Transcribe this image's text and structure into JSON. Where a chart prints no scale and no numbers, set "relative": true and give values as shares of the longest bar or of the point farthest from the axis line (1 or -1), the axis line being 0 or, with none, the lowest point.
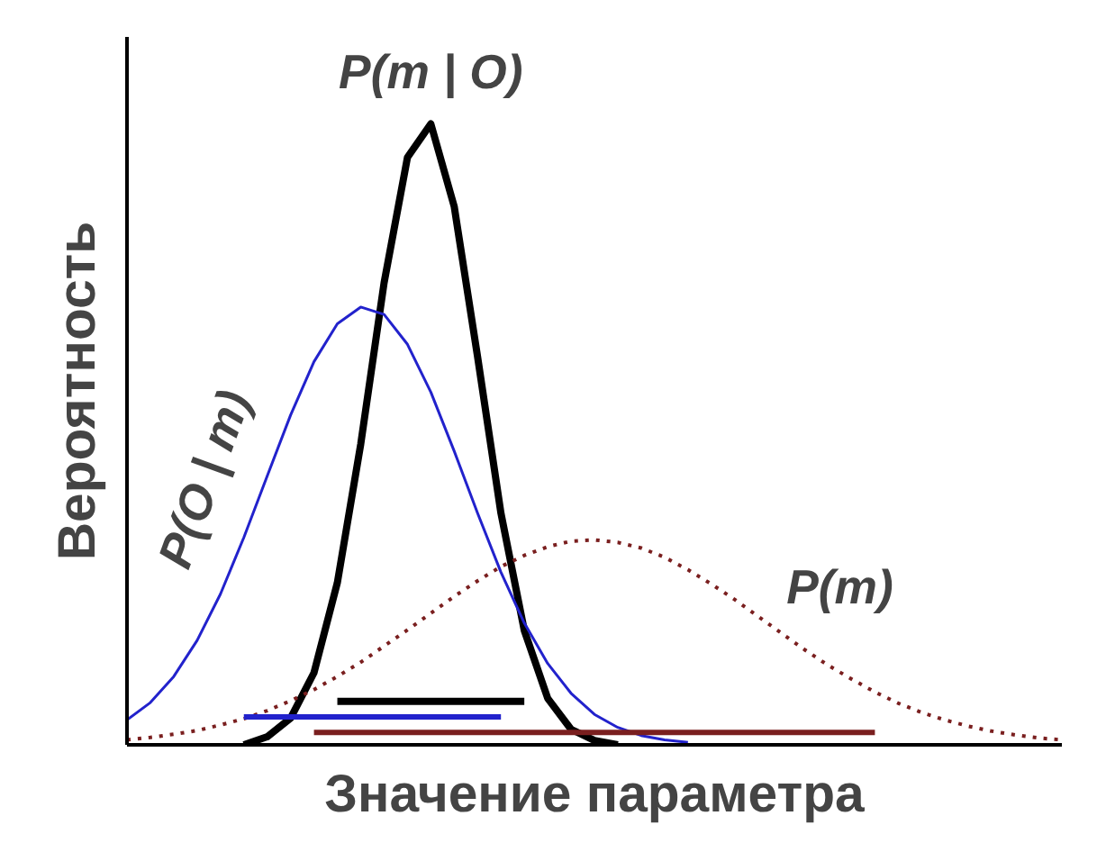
{
  "chart_data": {
    "type": "line",
    "relative": true,
    "xlabel": "Значение параметра",
    "ylabel": "Вероятность",
    "tick_labels": false,
    "grid": false,
    "categories": [
      null,
      null,
      null,
      null,
      null,
      null,
      null,
      null,
      null,
      null,
      null,
      null,
      null,
      null,
      null,
      null,
      null,
      null,
      null,
      null,
      null,
      null,
      null,
      null,
      null,
      null,
      null,
      null,
      null,
      null,
      null,
      null,
      null,
      null,
      null,
      null,
      null,
      null,
      null,
      null,
      null
    ],
    "series": [
      {
        "name": "P(m | O)",
        "color": "#000000",
        "values": [
          null,
          null,
          null,
          null,
          null,
          0,
          0.013,
          0.043,
          0.116,
          0.261,
          0.484,
          0.744,
          0.946,
          1.0,
          0.867,
          0.625,
          0.373,
          0.184,
          0.075,
          0.025,
          0.007,
          0,
          null,
          null,
          null,
          null,
          null,
          null,
          null,
          null,
          null,
          null,
          null,
          null,
          null,
          null,
          null,
          null,
          null,
          null,
          null
        ]
      },
      {
        "name": "P(O | m)",
        "color": "#2222cc",
        "values": [
          0.04,
          0.068,
          0.11,
          0.168,
          0.243,
          0.334,
          0.433,
          0.531,
          0.617,
          0.678,
          0.705,
          0.693,
          0.645,
          0.568,
          0.473,
          0.373,
          0.278,
          0.196,
          0.131,
          0.083,
          0.049,
          0.028,
          0.015,
          0.008,
          0.004,
          null,
          null,
          null,
          null,
          null,
          null,
          null,
          null,
          null,
          null,
          null,
          null,
          null,
          null,
          null,
          null
        ]
      },
      {
        "name": "P(m)",
        "color": "#7a1f1f",
        "line_style": "dotted",
        "values": [
          0.008,
          0.012,
          0.017,
          0.023,
          0.032,
          0.042,
          0.055,
          0.071,
          0.089,
          0.11,
          0.133,
          0.159,
          0.185,
          0.212,
          0.239,
          0.264,
          0.287,
          0.305,
          0.319,
          0.328,
          0.33,
          0.326,
          0.317,
          0.302,
          0.282,
          0.259,
          0.234,
          0.207,
          0.18,
          0.153,
          0.128,
          0.106,
          0.085,
          0.067,
          0.052,
          0.04,
          0.03,
          0.022,
          0.016,
          0.011,
          0.008
        ]
      },
      {
        "color": "#000000",
        "values": [
          null,
          null,
          null,
          null,
          null,
          null,
          null,
          null,
          null,
          0.07,
          0.07,
          0.07,
          0.07,
          0.07,
          0.07,
          0.07,
          0.07,
          0.07,
          null,
          null,
          null,
          null,
          null,
          null,
          null,
          null,
          null,
          null,
          null,
          null,
          null,
          null,
          null,
          null,
          null,
          null,
          null,
          null,
          null,
          null,
          null
        ]
      },
      {
        "color": "#2222cc",
        "values": [
          null,
          null,
          null,
          null,
          null,
          0.045,
          0.045,
          0.045,
          0.045,
          0.045,
          0.045,
          0.045,
          0.045,
          0.045,
          0.045,
          0.045,
          0.045,
          null,
          null,
          null,
          null,
          null,
          null,
          null,
          null,
          null,
          null,
          null,
          null,
          null,
          null,
          null,
          null,
          null,
          null,
          null,
          null,
          null,
          null,
          null,
          null
        ]
      },
      {
        "color": "#7a1f1f",
        "values": [
          null,
          null,
          null,
          null,
          null,
          null,
          null,
          null,
          0.02,
          0.02,
          0.02,
          0.02,
          0.02,
          0.02,
          0.02,
          0.02,
          0.02,
          0.02,
          0.02,
          0.02,
          0.02,
          0.02,
          0.02,
          0.02,
          0.02,
          0.02,
          0.02,
          0.02,
          0.02,
          0.02,
          0.02,
          0.02,
          0.02,
          null,
          null,
          null,
          null,
          null,
          null,
          null,
          null
        ]
      }
    ]
  }
}
